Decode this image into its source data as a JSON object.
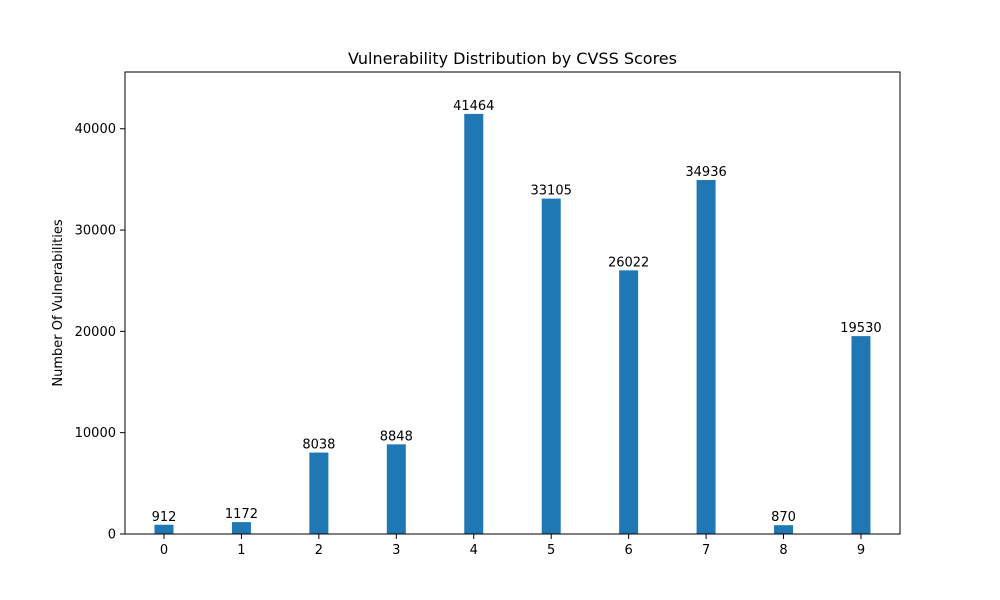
{
  "chart_data": {
    "type": "bar",
    "title": "Vulnerability Distribution by CVSS Scores",
    "xlabel": "",
    "ylabel": "Number Of Vulnerabilities",
    "categories": [
      "0",
      "1",
      "2",
      "3",
      "4",
      "5",
      "6",
      "7",
      "8",
      "9"
    ],
    "values": [
      912,
      1172,
      8038,
      8848,
      41464,
      33105,
      26022,
      34936,
      870,
      19530
    ],
    "value_labels": [
      "912",
      "1172",
      "8038",
      "8848",
      "41464",
      "33105",
      "26022",
      "34936",
      "870",
      "19530"
    ],
    "ylim": [
      0,
      45600
    ],
    "yticks": [
      0,
      10000,
      20000,
      30000,
      40000
    ],
    "ytick_labels": [
      "0",
      "10000",
      "20000",
      "30000",
      "40000"
    ],
    "bar_color": "#1f77b4",
    "grid": false,
    "legend": false
  }
}
